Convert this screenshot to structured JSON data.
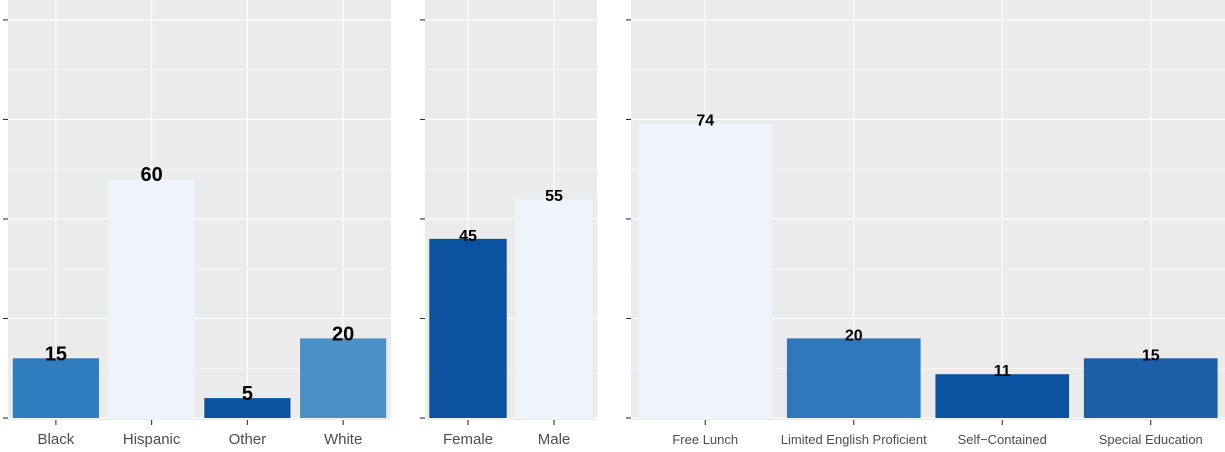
{
  "chart_data": [
    {
      "type": "bar",
      "categories": [
        "Black",
        "Hispanic",
        "Other",
        "White"
      ],
      "values": [
        15,
        60,
        5,
        20
      ],
      "labels": [
        "15",
        "60",
        "5",
        "20"
      ],
      "colors": [
        "#2f7cbf",
        "#eef3fc",
        "#0a52a0",
        "#4a91c8"
      ],
      "ylim": [
        -0.5,
        105
      ],
      "grid": true,
      "title": "",
      "xlabel": "",
      "ylabel": ""
    },
    {
      "type": "bar",
      "categories": [
        "Female",
        "Male"
      ],
      "values": [
        45,
        55
      ],
      "labels": [
        "45",
        "55"
      ],
      "colors": [
        "#0a52a0",
        "#eef3fc"
      ],
      "ylim": [
        -0.5,
        105
      ],
      "grid": true,
      "title": "",
      "xlabel": "",
      "ylabel": ""
    },
    {
      "type": "bar",
      "categories": [
        "Free Lunch",
        "Limited English Proficient",
        "Self−Contained",
        "Special Education"
      ],
      "values": [
        74,
        20,
        11,
        15
      ],
      "labels": [
        "74",
        "20",
        "11",
        "15"
      ],
      "colors": [
        "#eef3fc",
        "#2f77bb",
        "#0a52a0",
        "#1c5fa8"
      ],
      "ylim": [
        -0.5,
        105
      ],
      "grid": true,
      "title": "",
      "xlabel": "",
      "ylabel": ""
    }
  ]
}
